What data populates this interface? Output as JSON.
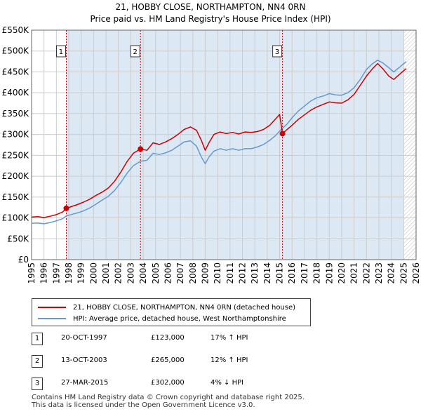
{
  "title_line1": "21, HOBBY CLOSE, NORTHAMPTON, NN4 0RN",
  "title_line2": "Price paid vs. HM Land Registry's House Price Index (HPI)",
  "colors": {
    "property_line": "#cc0000",
    "hpi_line": "#6699cc",
    "shade": "#dde8f5",
    "marker_line": "#cc0000",
    "grid": "#cccccc"
  },
  "chart_data": {
    "type": "line",
    "xlim": [
      1995,
      2026
    ],
    "ylim": [
      0,
      550000
    ],
    "x_ticks": [
      1995,
      1996,
      1997,
      1998,
      1999,
      2000,
      2001,
      2002,
      2003,
      2004,
      2005,
      2006,
      2007,
      2008,
      2009,
      2010,
      2011,
      2012,
      2013,
      2014,
      2015,
      2016,
      2017,
      2018,
      2019,
      2020,
      2021,
      2022,
      2023,
      2024,
      2025,
      2026
    ],
    "y_ticks": [
      0,
      50000,
      100000,
      150000,
      200000,
      250000,
      300000,
      350000,
      400000,
      450000,
      500000,
      550000
    ],
    "y_tick_labels": [
      "£0",
      "£50K",
      "£100K",
      "£150K",
      "£200K",
      "£250K",
      "£300K",
      "£350K",
      "£400K",
      "£450K",
      "£500K",
      "£550K"
    ],
    "series": [
      {
        "name": "21, HOBBY CLOSE, NORTHAMPTON, NN4 0RN (detached house)",
        "x": [
          1995.0,
          1995.5,
          1996.0,
          1996.5,
          1997.0,
          1997.5,
          1997.8,
          1998.2,
          1998.7,
          1999.2,
          1999.7,
          2000.2,
          2000.7,
          2001.2,
          2001.7,
          2002.2,
          2002.7,
          2003.2,
          2003.78,
          2004.3,
          2004.8,
          2005.3,
          2005.8,
          2006.3,
          2006.8,
          2007.3,
          2007.8,
          2008.3,
          2008.7,
          2009.0,
          2009.3,
          2009.7,
          2010.2,
          2010.7,
          2011.2,
          2011.7,
          2012.2,
          2012.7,
          2013.2,
          2013.7,
          2014.2,
          2014.7,
          2015.0,
          2015.23,
          2015.6,
          2016.0,
          2016.5,
          2017.0,
          2017.5,
          2018.0,
          2018.5,
          2019.0,
          2019.5,
          2020.0,
          2020.5,
          2021.0,
          2021.5,
          2022.0,
          2022.5,
          2022.9,
          2023.3,
          2023.8,
          2024.2,
          2024.7,
          2025.2
        ],
        "y": [
          102000,
          103000,
          101000,
          104000,
          108000,
          114000,
          123000,
          127000,
          132000,
          138000,
          145000,
          154000,
          162000,
          172000,
          188000,
          210000,
          235000,
          255000,
          265000,
          262000,
          280000,
          276000,
          282000,
          290000,
          300000,
          312000,
          318000,
          310000,
          285000,
          262000,
          280000,
          300000,
          306000,
          302000,
          305000,
          301000,
          306000,
          305000,
          307000,
          312000,
          322000,
          338000,
          348000,
          302000,
          312000,
          322000,
          336000,
          347000,
          358000,
          366000,
          372000,
          378000,
          376000,
          375000,
          383000,
          396000,
          418000,
          440000,
          458000,
          470000,
          458000,
          440000,
          432000,
          445000,
          458000
        ]
      },
      {
        "name": "HPI: Average price, detached house, West Northamptonshire",
        "x": [
          1995.0,
          1995.5,
          1996.0,
          1996.5,
          1997.0,
          1997.5,
          1997.8,
          1998.2,
          1998.7,
          1999.2,
          1999.7,
          2000.2,
          2000.7,
          2001.2,
          2001.7,
          2002.2,
          2002.7,
          2003.2,
          2003.78,
          2004.3,
          2004.8,
          2005.3,
          2005.8,
          2006.3,
          2006.8,
          2007.3,
          2007.8,
          2008.3,
          2008.7,
          2009.0,
          2009.3,
          2009.7,
          2010.2,
          2010.7,
          2011.2,
          2011.7,
          2012.2,
          2012.7,
          2013.2,
          2013.7,
          2014.2,
          2014.7,
          2015.0,
          2015.23,
          2015.6,
          2016.0,
          2016.5,
          2017.0,
          2017.5,
          2018.0,
          2018.5,
          2019.0,
          2019.5,
          2020.0,
          2020.5,
          2021.0,
          2021.5,
          2022.0,
          2022.5,
          2022.9,
          2023.3,
          2023.8,
          2024.2,
          2024.7,
          2025.2
        ],
        "y": [
          87000,
          88000,
          86000,
          89000,
          93000,
          98000,
          105000,
          108000,
          112000,
          117000,
          124000,
          133000,
          143000,
          152000,
          166000,
          185000,
          207000,
          225000,
          236000,
          238000,
          255000,
          252000,
          256000,
          262000,
          272000,
          282000,
          285000,
          272000,
          245000,
          230000,
          246000,
          260000,
          266000,
          262000,
          266000,
          262000,
          266000,
          266000,
          270000,
          276000,
          286000,
          298000,
          308000,
          315000,
          325000,
          340000,
          356000,
          368000,
          380000,
          388000,
          392000,
          398000,
          395000,
          394000,
          400000,
          412000,
          432000,
          456000,
          470000,
          478000,
          472000,
          460000,
          450000,
          462000,
          475000
        ]
      }
    ],
    "transactions": [
      {
        "num": "1",
        "x": 1997.8,
        "y": 123000,
        "date": "20-OCT-1997",
        "price": "£123,000",
        "hpi_text": "17% ↑ HPI"
      },
      {
        "num": "2",
        "x": 2003.78,
        "y": 265000,
        "date": "13-OCT-2003",
        "price": "£265,000",
        "hpi_text": "12% ↑ HPI"
      },
      {
        "num": "3",
        "x": 2015.23,
        "y": 302000,
        "date": "27-MAR-2015",
        "price": "£302,000",
        "hpi_text": "4% ↓ HPI"
      }
    ],
    "future_start": 2025.0
  },
  "legend": {
    "property_label": "21, HOBBY CLOSE, NORTHAMPTON, NN4 0RN (detached house)",
    "hpi_label": "HPI: Average price, detached house, West Northamptonshire"
  },
  "footer_line1": "Contains HM Land Registry data © Crown copyright and database right 2025.",
  "footer_line2": "This data is licensed under the Open Government Licence v3.0."
}
